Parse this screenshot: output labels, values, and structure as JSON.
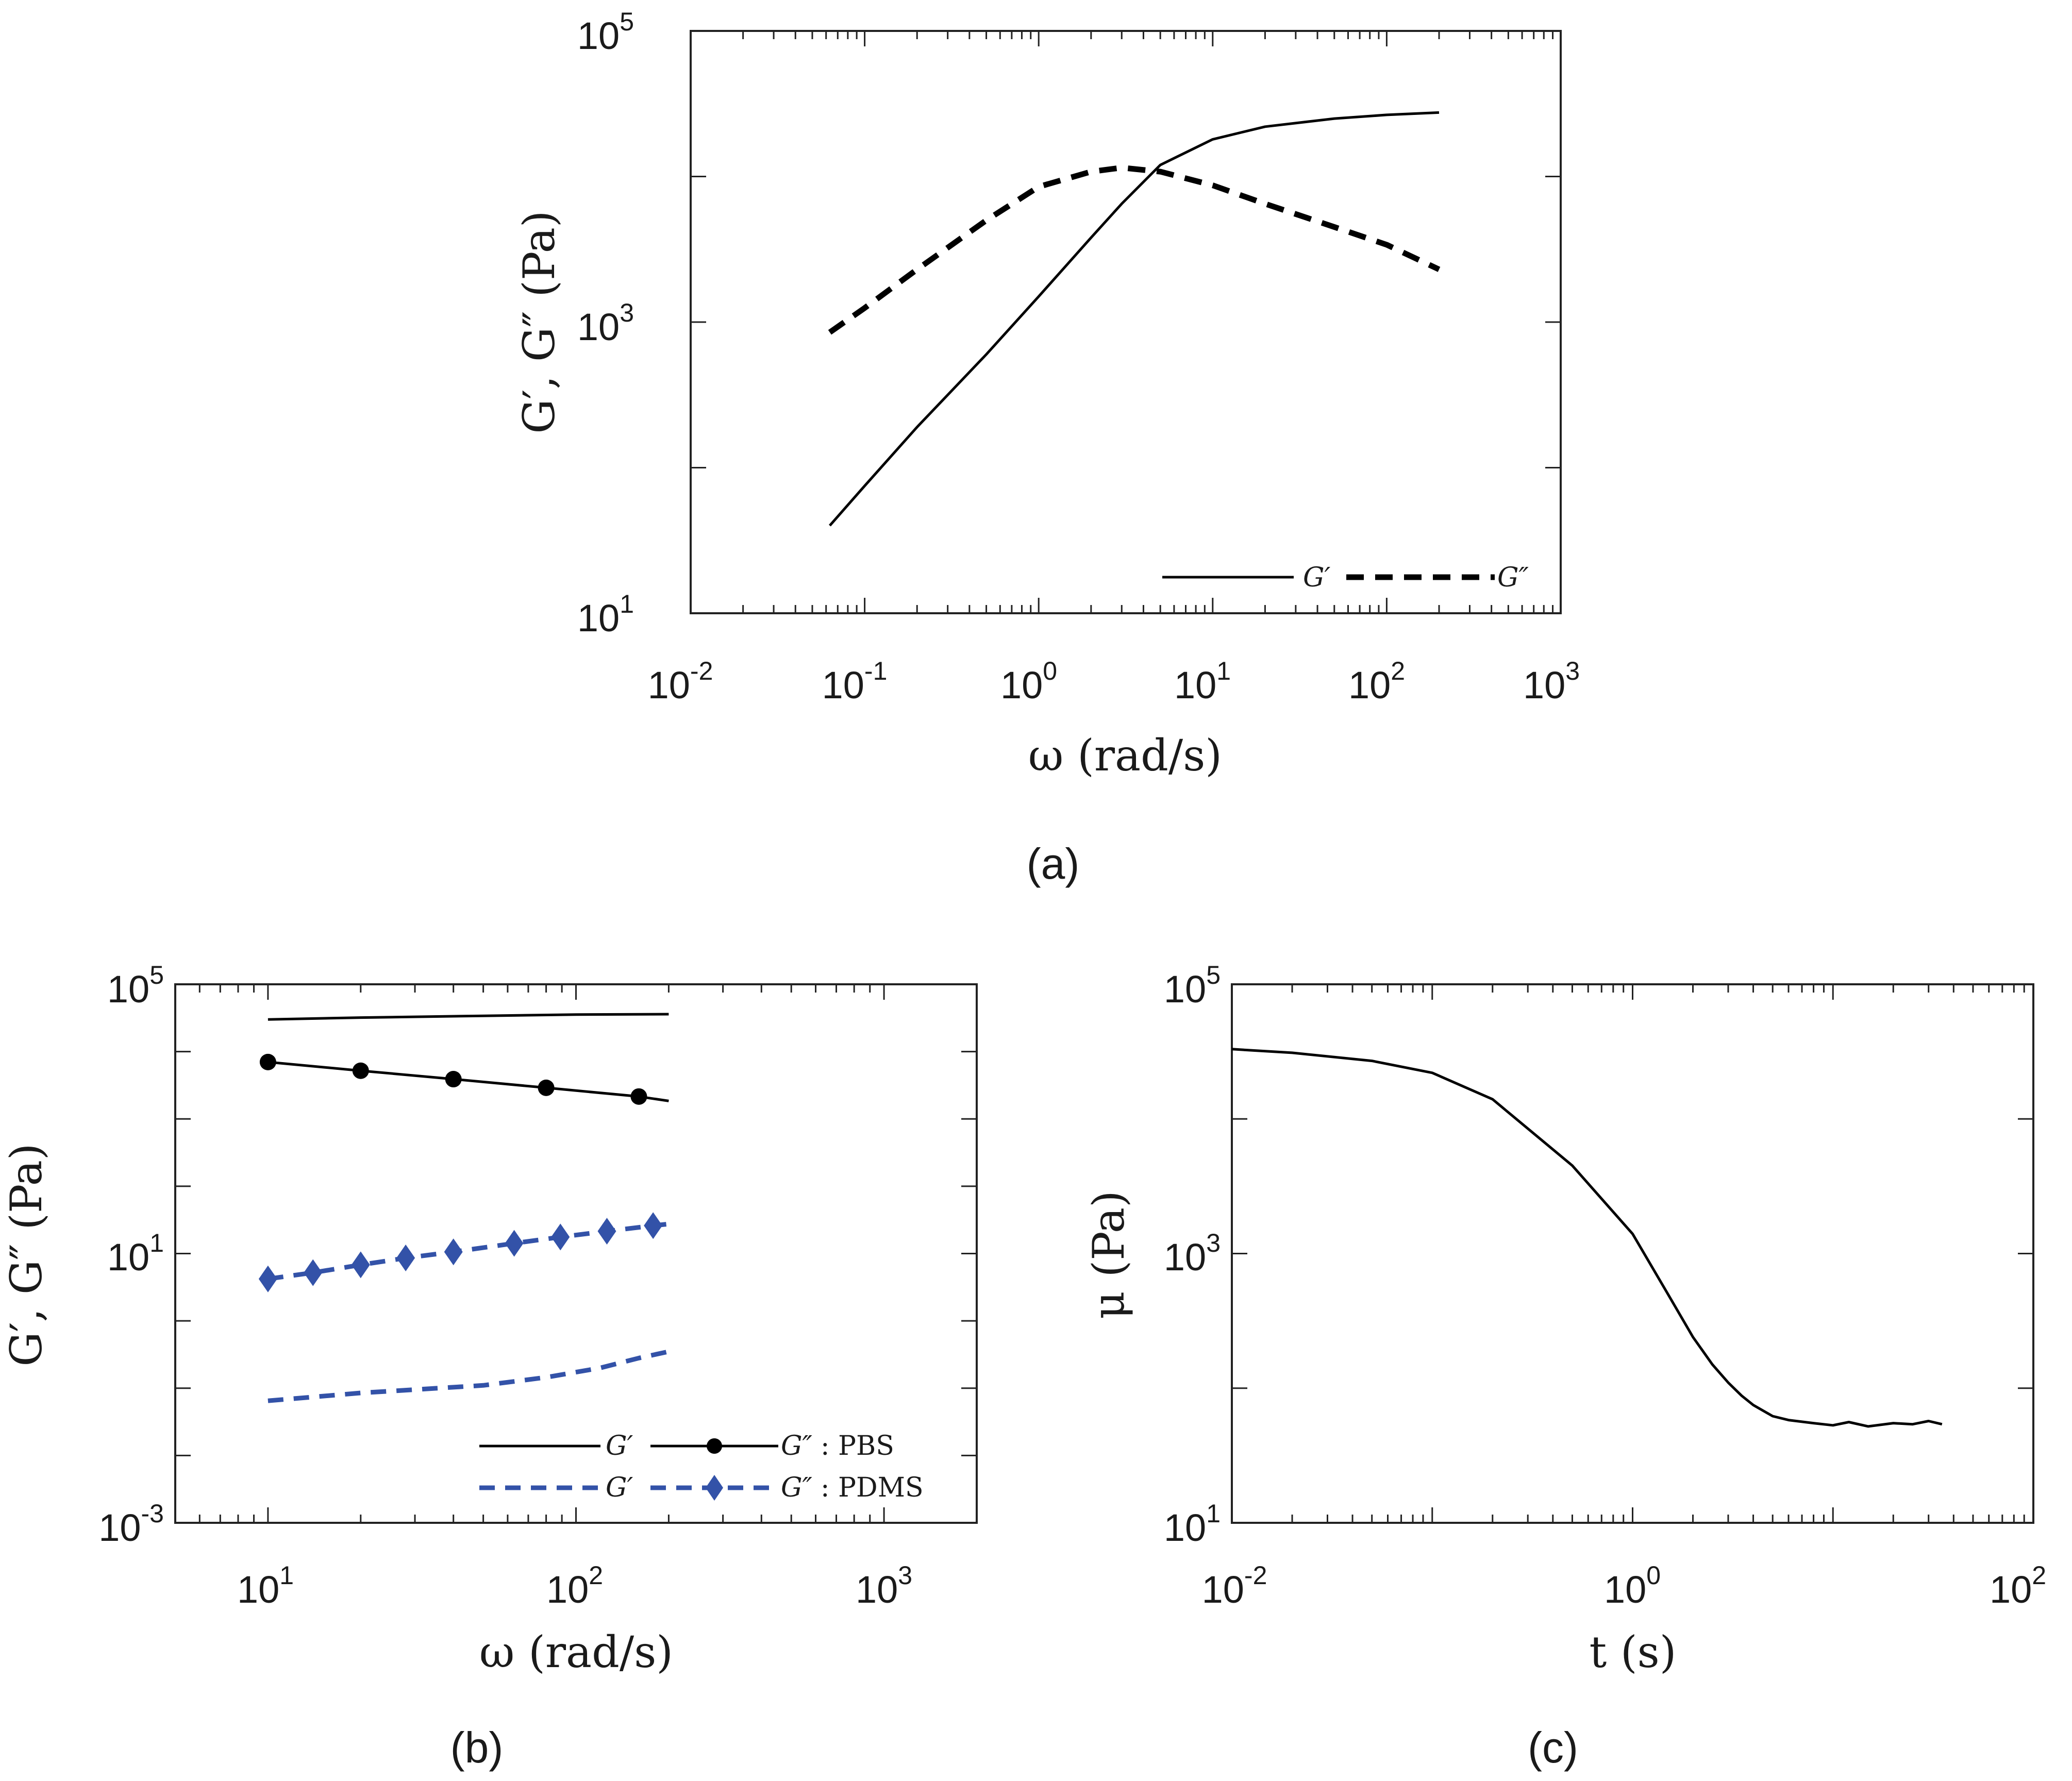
{
  "chart_data": [
    {
      "id": "a",
      "type": "line",
      "caption": "(a)",
      "xscale": "log",
      "yscale": "log",
      "xlim": [
        0.01,
        1000
      ],
      "ylim": [
        10,
        100000
      ],
      "xticks": [
        {
          "b": "10",
          "e": "-2"
        },
        {
          "b": "10",
          "e": "-1"
        },
        {
          "b": "10",
          "e": "0"
        },
        {
          "b": "10",
          "e": "1"
        },
        {
          "b": "10",
          "e": "2"
        },
        {
          "b": "10",
          "e": "3"
        }
      ],
      "yticks": [
        {
          "b": "10",
          "e": "1"
        },
        {
          "b": "10",
          "e": "3"
        },
        {
          "b": "10",
          "e": "5"
        }
      ],
      "ytick_values": [
        10,
        1000,
        100000
      ],
      "xlabel": "ω (rad/s)",
      "ylabel": "G′, G″ (Pa)",
      "legend": {
        "position": "bottom-right",
        "rows": [
          {
            "label": "G′",
            "entries": [
              "G′",
              "G″"
            ]
          }
        ]
      },
      "series": [
        {
          "name": "G′",
          "style": "solid",
          "color": "#000000",
          "x": [
            0.063,
            0.1,
            0.2,
            0.5,
            1,
            2,
            3,
            5,
            10,
            20,
            50,
            100,
            200
          ],
          "y": [
            40,
            75,
            190,
            600,
            1500,
            3800,
            6500,
            12000,
            18000,
            22000,
            25000,
            26500,
            27500
          ]
        },
        {
          "name": "G″",
          "style": "dashed",
          "color": "#000000",
          "x": [
            0.063,
            0.1,
            0.2,
            0.5,
            1,
            2,
            3,
            5,
            10,
            20,
            50,
            100,
            200
          ],
          "y": [
            850,
            1250,
            2300,
            5000,
            8500,
            10800,
            11500,
            10800,
            8700,
            6500,
            4500,
            3400,
            2300
          ]
        }
      ]
    },
    {
      "id": "b",
      "type": "line",
      "caption": "(b)",
      "xscale": "log",
      "yscale": "log",
      "xlim": [
        5,
        2000
      ],
      "ylim": [
        0.001,
        100000
      ],
      "xticks": [
        {
          "b": "10",
          "e": "1"
        },
        {
          "b": "10",
          "e": "2"
        },
        {
          "b": "10",
          "e": "3"
        }
      ],
      "xtick_values": [
        10,
        100,
        1000
      ],
      "yticks": [
        {
          "b": "10",
          "e": "-3"
        },
        {
          "b": "10",
          "e": "1"
        },
        {
          "b": "10",
          "e": "5"
        }
      ],
      "ytick_values": [
        0.001,
        10,
        100000
      ],
      "xlabel": "ω (rad/s)",
      "ylabel": "G′, G″ (Pa)",
      "legend": {
        "position": "bottom-right",
        "rows": [
          {
            "group": "PBS",
            "entries": [
              "G′",
              "G″"
            ],
            "suffix": ": PBS"
          },
          {
            "group": "PDMS",
            "entries": [
              "G′",
              "G″"
            ],
            "suffix": ": PDMS"
          }
        ]
      },
      "series": [
        {
          "name": "G′ PBS",
          "style": "solid",
          "color": "#000000",
          "marker": "none",
          "x": [
            10,
            20,
            50,
            100,
            200
          ],
          "y": [
            30000,
            32000,
            34000,
            35500,
            36000
          ]
        },
        {
          "name": "G″ PBS",
          "style": "solid",
          "color": "#000000",
          "marker": "circle",
          "x": [
            10,
            20,
            40,
            80,
            160,
            200
          ],
          "y": [
            7000,
            5200,
            3900,
            2900,
            2150,
            1850
          ],
          "marker_x": [
            10,
            20,
            40,
            80,
            160
          ],
          "marker_y": [
            7000,
            5200,
            3900,
            2900,
            2150
          ]
        },
        {
          "name": "G′ PDMS",
          "style": "dashed",
          "color": "#3352a8",
          "marker": "none",
          "x": [
            10,
            20,
            50,
            80,
            120,
            160,
            200
          ],
          "y": [
            0.065,
            0.085,
            0.11,
            0.145,
            0.2,
            0.28,
            0.35
          ]
        },
        {
          "name": "G″ PDMS",
          "style": "dashed",
          "color": "#3352a8",
          "marker": "diamond",
          "x": [
            10,
            14,
            20,
            28,
            40,
            63,
            89,
            126,
            178,
            200
          ],
          "y": [
            4.2,
            5.2,
            6.8,
            8.6,
            10.6,
            14.2,
            17.6,
            21.5,
            26,
            27.5
          ],
          "marker_x": [
            10,
            14,
            20,
            28,
            40,
            63,
            89,
            126,
            178
          ],
          "marker_y": [
            4.2,
            5.2,
            6.8,
            8.6,
            10.6,
            14.2,
            17.6,
            21.5,
            26
          ]
        }
      ]
    },
    {
      "id": "c",
      "type": "line",
      "caption": "(c)",
      "xscale": "log",
      "yscale": "log",
      "xlim": [
        0.01,
        100
      ],
      "ylim": [
        10,
        100000
      ],
      "xticks": [
        {
          "b": "10",
          "e": "-2"
        },
        {
          "b": "10",
          "e": "0"
        },
        {
          "b": "10",
          "e": "2"
        }
      ],
      "xtick_values": [
        0.01,
        1,
        100
      ],
      "yticks": [
        {
          "b": "10",
          "e": "1"
        },
        {
          "b": "10",
          "e": "3"
        },
        {
          "b": "10",
          "e": "5"
        }
      ],
      "ytick_values": [
        10,
        1000,
        100000
      ],
      "xlabel": "t (s)",
      "ylabel": "μ (Pa)",
      "series": [
        {
          "name": "μ",
          "style": "solid",
          "color": "#000000",
          "x": [
            0.01,
            0.02,
            0.05,
            0.1,
            0.2,
            0.5,
            1,
            1.5,
            2,
            2.5,
            3,
            3.5,
            4,
            5,
            6,
            8,
            10,
            12,
            15,
            20,
            25,
            30,
            35
          ],
          "y": [
            33000,
            31000,
            27000,
            22000,
            14000,
            4500,
            1400,
            500,
            240,
            150,
            110,
            88,
            75,
            62,
            58,
            55,
            53,
            56,
            52,
            55,
            54,
            57,
            54
          ]
        }
      ]
    }
  ]
}
